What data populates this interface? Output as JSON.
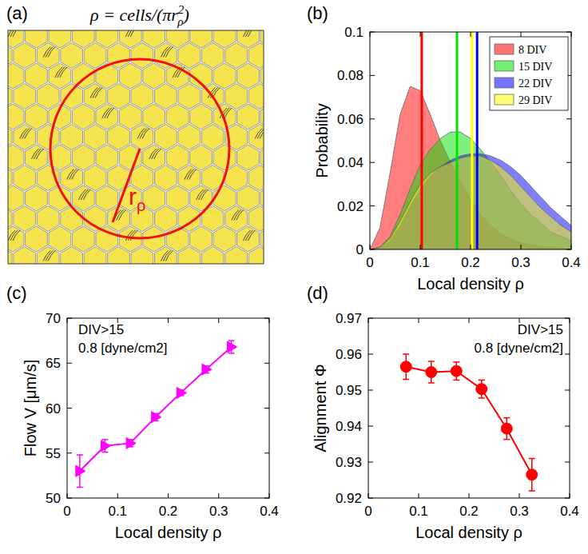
{
  "diagram": {
    "panel_label": "(a)",
    "formula": {
      "lhs": "ρ = cells/(πr",
      "sup": "2",
      "sub": "ρ",
      "rhs": ")"
    },
    "radius_label": {
      "base": "r",
      "sub": "ρ"
    }
  },
  "chart_data": [
    {
      "type": "area",
      "panel_label": "(b)",
      "x_label": "Local density ρ",
      "y_label": "Probability",
      "x": [
        0,
        0.02,
        0.04,
        0.06,
        0.08,
        0.1,
        0.12,
        0.14,
        0.16,
        0.18,
        0.2,
        0.22,
        0.24,
        0.26,
        0.28,
        0.3,
        0.32,
        0.34,
        0.36,
        0.38,
        0.4
      ],
      "xlim": [
        0,
        0.4
      ],
      "xticks": [
        0,
        0.1,
        0.2,
        0.3,
        0.4
      ],
      "ylim": [
        0,
        0.1
      ],
      "yticks": [
        0,
        0.02,
        0.04,
        0.06,
        0.08,
        0.1
      ],
      "legend": "upper right",
      "series": [
        {
          "name": "8 DIV",
          "color": "#ff0000",
          "mean": 0.103,
          "values": [
            0,
            0.01,
            0.035,
            0.062,
            0.075,
            0.073,
            0.062,
            0.05,
            0.04,
            0.031,
            0.023,
            0.016,
            0.011,
            0.007,
            0.005,
            0.003,
            0.002,
            0.001,
            0.001,
            0.0005,
            0.0003
          ]
        },
        {
          "name": "15 DIV",
          "color": "#00e000",
          "mean": 0.173,
          "values": [
            0,
            0.001,
            0.006,
            0.016,
            0.028,
            0.039,
            0.046,
            0.051,
            0.054,
            0.054,
            0.051,
            0.046,
            0.04,
            0.034,
            0.027,
            0.021,
            0.016,
            0.012,
            0.008,
            0.006,
            0.004
          ]
        },
        {
          "name": "22 DIV",
          "color": "#0000ff",
          "mean": 0.213,
          "values": [
            0,
            0.001,
            0.004,
            0.011,
            0.02,
            0.028,
            0.034,
            0.038,
            0.041,
            0.043,
            0.044,
            0.044,
            0.043,
            0.041,
            0.038,
            0.034,
            0.029,
            0.024,
            0.019,
            0.015,
            0.011
          ]
        },
        {
          "name": "29 DIV",
          "color": "#ffff00",
          "mean": 0.203,
          "values": [
            0,
            0.001,
            0.005,
            0.013,
            0.022,
            0.03,
            0.035,
            0.038,
            0.04,
            0.042,
            0.043,
            0.043,
            0.041,
            0.038,
            0.034,
            0.029,
            0.024,
            0.019,
            0.015,
            0.011,
            0.008
          ]
        }
      ]
    },
    {
      "type": "line",
      "panel_label": "(c)",
      "x_label": "Local density ρ",
      "y_label": "Flow V [μm/s]",
      "annotations": [
        "DIV>15",
        "0.8 [dyne/cm2]"
      ],
      "x": [
        0.025,
        0.075,
        0.125,
        0.175,
        0.225,
        0.275,
        0.325
      ],
      "xlim": [
        0,
        0.4
      ],
      "xticks": [
        0,
        0.1,
        0.2,
        0.3,
        0.4
      ],
      "ylim": [
        50,
        70
      ],
      "yticks": [
        50,
        55,
        60,
        65,
        70
      ],
      "series": [
        {
          "color": "#ff00ff",
          "marker": "triangle-right",
          "values": [
            53,
            55.8,
            56.1,
            59,
            61.7,
            64.3,
            66.8
          ],
          "errors": [
            1.8,
            0.7,
            0.4,
            0.4,
            0.3,
            0.4,
            0.7
          ]
        }
      ]
    },
    {
      "type": "line",
      "panel_label": "(d)",
      "x_label": "Local density ρ",
      "y_label": "Alignment Φ",
      "annotations": [
        "DIV>15",
        "0.8 [dyne/cm2]"
      ],
      "x": [
        0.075,
        0.125,
        0.175,
        0.225,
        0.275,
        0.325
      ],
      "xlim": [
        0,
        0.4
      ],
      "xticks": [
        0,
        0.1,
        0.2,
        0.3,
        0.4
      ],
      "ylim": [
        0.92,
        0.97
      ],
      "yticks": [
        0.92,
        0.93,
        0.94,
        0.95,
        0.96,
        0.97
      ],
      "series": [
        {
          "color": "#ff0000",
          "marker": "circle",
          "values": [
            0.9565,
            0.955,
            0.9553,
            0.9503,
            0.9393,
            0.9265
          ],
          "errors": [
            0.0035,
            0.003,
            0.0025,
            0.0025,
            0.003,
            0.0045
          ]
        }
      ]
    }
  ]
}
